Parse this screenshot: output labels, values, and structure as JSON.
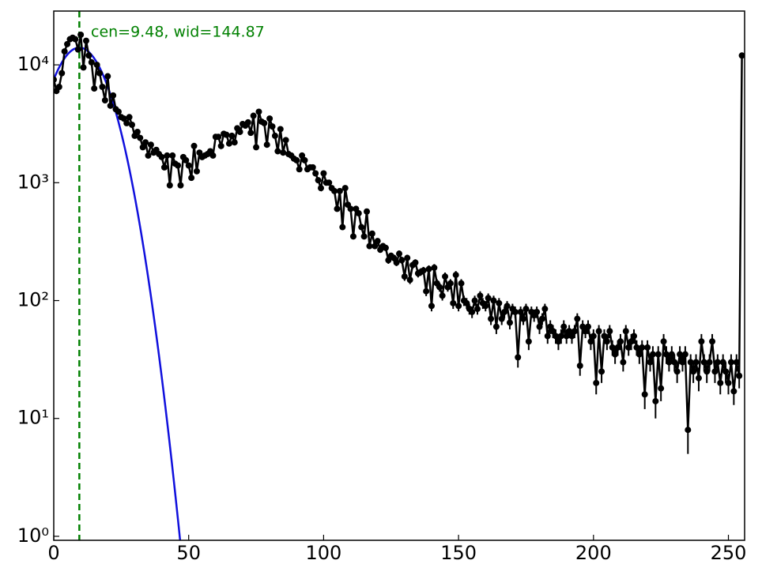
{
  "chart_data": {
    "type": "errorline",
    "annotation": "cen=9.48, wid=144.87",
    "x": [
      0,
      1,
      2,
      3,
      4,
      5,
      6,
      7,
      8,
      9,
      10,
      11,
      12,
      13,
      14,
      15,
      16,
      17,
      18,
      19,
      20,
      21,
      22,
      23,
      24,
      25,
      26,
      27,
      28,
      29,
      30,
      31,
      32,
      33,
      34,
      35,
      36,
      37,
      38,
      39,
      40,
      41,
      42,
      43,
      44,
      45,
      46,
      47,
      48,
      49,
      50,
      51,
      52,
      53,
      54,
      55,
      56,
      57,
      58,
      59,
      60,
      61,
      62,
      63,
      64,
      65,
      66,
      67,
      68,
      69,
      70,
      71,
      72,
      73,
      74,
      75,
      76,
      77,
      78,
      79,
      80,
      81,
      82,
      83,
      84,
      85,
      86,
      87,
      88,
      89,
      90,
      91,
      92,
      93,
      94,
      95,
      96,
      97,
      98,
      99,
      100,
      101,
      102,
      103,
      104,
      105,
      106,
      107,
      108,
      109,
      110,
      111,
      112,
      113,
      114,
      115,
      116,
      117,
      118,
      119,
      120,
      121,
      122,
      123,
      124,
      125,
      126,
      127,
      128,
      129,
      130,
      131,
      132,
      133,
      134,
      135,
      136,
      137,
      138,
      139,
      140,
      141,
      142,
      143,
      144,
      145,
      146,
      147,
      148,
      149,
      150,
      151,
      152,
      153,
      154,
      155,
      156,
      157,
      158,
      159,
      160,
      161,
      162,
      163,
      164,
      165,
      166,
      167,
      168,
      169,
      170,
      171,
      172,
      173,
      174,
      175,
      176,
      177,
      178,
      179,
      180,
      181,
      182,
      183,
      184,
      185,
      186,
      187,
      188,
      189,
      190,
      191,
      192,
      193,
      194,
      195,
      196,
      197,
      198,
      199,
      200,
      201,
      202,
      203,
      204,
      205,
      206,
      207,
      208,
      209,
      210,
      211,
      212,
      213,
      214,
      215,
      216,
      217,
      218,
      219,
      220,
      221,
      222,
      223,
      224,
      225,
      226,
      227,
      228,
      229,
      230,
      231,
      232,
      233,
      234,
      235,
      236,
      237,
      238,
      239,
      240,
      241,
      242,
      243,
      244,
      245,
      246,
      247,
      248,
      249,
      250,
      251,
      252,
      253,
      254,
      255
    ],
    "values": [
      7500,
      6000,
      6500,
      8500,
      13000,
      15000,
      16500,
      17000,
      16500,
      13500,
      18000,
      9500,
      16000,
      12000,
      10500,
      6300,
      10000,
      8500,
      6500,
      5000,
      8000,
      4500,
      5500,
      4200,
      4000,
      3600,
      3500,
      3200,
      3600,
      3100,
      2500,
      2700,
      2400,
      2000,
      2200,
      1700,
      2100,
      1800,
      1900,
      1750,
      1650,
      1350,
      1700,
      950,
      1700,
      1450,
      1400,
      950,
      1650,
      1550,
      1400,
      1100,
      2050,
      1250,
      1800,
      1650,
      1700,
      1750,
      1850,
      1700,
      2450,
      2450,
      2050,
      2600,
      2550,
      2150,
      2500,
      2200,
      2900,
      2700,
      3150,
      3050,
      3250,
      2650,
      3700,
      2000,
      4000,
      3300,
      3200,
      2100,
      3500,
      3000,
      2500,
      1850,
      2850,
      1800,
      2300,
      1750,
      1700,
      1600,
      1550,
      1300,
      1700,
      1550,
      1300,
      1350,
      1350,
      1200,
      1050,
      900,
      1200,
      1000,
      1000,
      900,
      850,
      600,
      850,
      420,
      900,
      650,
      600,
      350,
      600,
      550,
      420,
      350,
      570,
      290,
      370,
      290,
      320,
      270,
      290,
      280,
      220,
      240,
      230,
      210,
      250,
      220,
      160,
      230,
      150,
      200,
      210,
      170,
      175,
      180,
      120,
      185,
      90,
      190,
      140,
      130,
      110,
      160,
      130,
      140,
      95,
      165,
      90,
      140,
      100,
      95,
      85,
      80,
      100,
      85,
      110,
      95,
      90,
      105,
      70,
      100,
      60,
      95,
      70,
      80,
      90,
      65,
      85,
      80,
      33,
      80,
      70,
      85,
      45,
      80,
      75,
      80,
      60,
      70,
      85,
      50,
      60,
      55,
      50,
      45,
      50,
      60,
      50,
      55,
      50,
      55,
      70,
      28,
      60,
      55,
      60,
      45,
      50,
      20,
      55,
      25,
      50,
      45,
      55,
      40,
      35,
      40,
      45,
      30,
      55,
      40,
      45,
      50,
      40,
      35,
      40,
      16,
      40,
      30,
      35,
      14,
      35,
      18,
      45,
      35,
      30,
      35,
      30,
      25,
      35,
      30,
      35,
      8,
      30,
      25,
      30,
      22,
      45,
      30,
      25,
      30,
      45,
      25,
      30,
      20,
      30,
      25,
      20,
      30,
      17,
      30,
      23,
      12000
    ],
    "errors": [
      87,
      77,
      81,
      92,
      114,
      122,
      128,
      130,
      128,
      116,
      134,
      97,
      126,
      110,
      102,
      79,
      100,
      92,
      81,
      71,
      89,
      67,
      74,
      65,
      63,
      60,
      59,
      57,
      60,
      56,
      50,
      52,
      49,
      45,
      47,
      41,
      46,
      42,
      44,
      42,
      41,
      37,
      41,
      31,
      41,
      38,
      37,
      31,
      41,
      39,
      37,
      33,
      45,
      35,
      42,
      41,
      41,
      42,
      43,
      41,
      49,
      49,
      45,
      51,
      50,
      46,
      50,
      47,
      54,
      52,
      56,
      55,
      57,
      51,
      61,
      45,
      63,
      57,
      57,
      46,
      59,
      55,
      50,
      43,
      53,
      42,
      48,
      42,
      41,
      40,
      39,
      36,
      41,
      39,
      36,
      37,
      37,
      35,
      32,
      30,
      35,
      32,
      32,
      30,
      29,
      24,
      29,
      20,
      30,
      25,
      24,
      19,
      24,
      23,
      20,
      19,
      24,
      17,
      19,
      17,
      18,
      16,
      17,
      17,
      15,
      15,
      15,
      14,
      16,
      15,
      13,
      15,
      12,
      14,
      14,
      13,
      13,
      13,
      11,
      14,
      9,
      14,
      12,
      11,
      10,
      13,
      11,
      12,
      10,
      13,
      9,
      12,
      10,
      10,
      9,
      9,
      10,
      9,
      10,
      10,
      9,
      10,
      8,
      10,
      8,
      10,
      8,
      9,
      9,
      8,
      9,
      9,
      6,
      9,
      8,
      9,
      7,
      9,
      9,
      9,
      8,
      8,
      9,
      7,
      8,
      7,
      7,
      7,
      7,
      8,
      7,
      7,
      7,
      7,
      8,
      5,
      8,
      7,
      8,
      7,
      7,
      4,
      7,
      5,
      7,
      7,
      7,
      6,
      6,
      6,
      7,
      5,
      7,
      6,
      7,
      7,
      6,
      6,
      6,
      4,
      6,
      5,
      6,
      4,
      6,
      4,
      7,
      6,
      5,
      6,
      5,
      5,
      6,
      5,
      6,
      3,
      5,
      5,
      5,
      5,
      7,
      5,
      5,
      5,
      7,
      5,
      5,
      4,
      5,
      5,
      4,
      5,
      4,
      5,
      5,
      110
    ],
    "color": "#000000",
    "fit": {
      "center": 9.48,
      "width": 144.87,
      "amplitude": 14000,
      "color": "#1010dd",
      "line_color": "#008000"
    },
    "xlim": [
      0,
      256
    ],
    "ylim": [
      0.925,
      28600
    ],
    "log_y": true,
    "xticks": [
      0,
      50,
      100,
      150,
      200,
      250
    ],
    "yticks": [
      {
        "value": 1,
        "label": "10⁰"
      },
      {
        "value": 10,
        "label": "10¹"
      },
      {
        "value": 100,
        "label": "10²"
      },
      {
        "value": 1000,
        "label": "10³"
      },
      {
        "value": 10000,
        "label": "10⁴"
      }
    ]
  }
}
